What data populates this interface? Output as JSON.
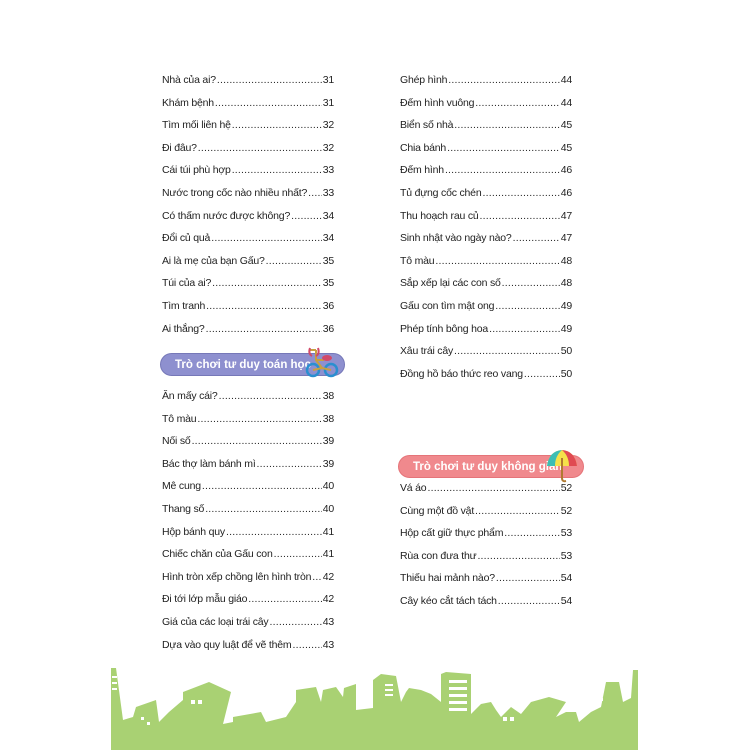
{
  "left_column": {
    "entries_top": [
      {
        "title": "Nhà của ai?",
        "page": "31"
      },
      {
        "title": "Khám bệnh",
        "page": "31"
      },
      {
        "title": "Tìm mối liên hệ",
        "page": "32"
      },
      {
        "title": "Đi đâu?",
        "page": "32"
      },
      {
        "title": "Cái túi phù hợp",
        "page": "33"
      },
      {
        "title": "Nước trong cốc nào nhiều nhất?",
        "page": "33"
      },
      {
        "title": "Có thấm nước được không?",
        "page": "34"
      },
      {
        "title": "Đổi củ quả",
        "page": "34"
      },
      {
        "title": "Ai là mẹ của bạn Gấu?",
        "page": "35"
      },
      {
        "title": "Túi của ai?",
        "page": "35"
      },
      {
        "title": "Tìm tranh",
        "page": "36"
      },
      {
        "title": "Ai thắng?",
        "page": "36"
      }
    ],
    "section": {
      "title": "Trò chơi tư duy toán học",
      "icon": "bicycle-icon",
      "color": "#8e90cf"
    },
    "entries_bottom": [
      {
        "title": "Ăn mấy cái?",
        "page": "38"
      },
      {
        "title": "Tô màu",
        "page": "38"
      },
      {
        "title": "Nối số",
        "page": "39"
      },
      {
        "title": "Bác thợ làm bánh mì",
        "page": "39"
      },
      {
        "title": "Mê cung",
        "page": "40"
      },
      {
        "title": "Thang số",
        "page": "40"
      },
      {
        "title": "Hộp bánh quy",
        "page": "41"
      },
      {
        "title": "Chiếc chăn của Gấu con",
        "page": "41"
      },
      {
        "title": "Hình tròn xếp chồng lên hình tròn",
        "page": "42"
      },
      {
        "title": "Đi tới lớp mẫu giáo",
        "page": "42"
      },
      {
        "title": "Giá của các loại trái cây",
        "page": "43"
      },
      {
        "title": "Dựa vào quy luật để vẽ thêm",
        "page": "43"
      }
    ]
  },
  "right_column": {
    "entries_top": [
      {
        "title": "Ghép hình",
        "page": "44"
      },
      {
        "title": "Đếm hình vuông",
        "page": "44"
      },
      {
        "title": "Biển số nhà",
        "page": "45"
      },
      {
        "title": "Chia bánh",
        "page": "45"
      },
      {
        "title": "Đếm hình",
        "page": "46"
      },
      {
        "title": "Tủ đựng cốc chén",
        "page": "46"
      },
      {
        "title": "Thu hoạch rau củ",
        "page": "47"
      },
      {
        "title": "Sinh nhật vào ngày nào?",
        "page": "47"
      },
      {
        "title": "Tô màu",
        "page": "48"
      },
      {
        "title": "Sắp xếp lại các con số",
        "page": "48"
      },
      {
        "title": "Gấu con tìm mật ong",
        "page": "49"
      },
      {
        "title": "Phép tính bông hoa",
        "page": "49"
      },
      {
        "title": "Xâu trái cây",
        "page": "50"
      },
      {
        "title": "Đồng hồ báo thức reo vang",
        "page": "50"
      }
    ],
    "section": {
      "title": "Trò chơi tư duy không gian",
      "icon": "umbrella-icon",
      "color": "#f0898d"
    },
    "entries_bottom": [
      {
        "title": "Vá áo",
        "page": "52"
      },
      {
        "title": "Cùng một đồ vật",
        "page": "52"
      },
      {
        "title": "Hộp cất giữ thực phẩm",
        "page": "53"
      },
      {
        "title": "Rùa con đưa thư",
        "page": "53"
      },
      {
        "title": "Thiếu hai mảnh nào?",
        "page": "54"
      },
      {
        "title": "Cây kéo cắt tách tách",
        "page": "54"
      }
    ]
  },
  "decoration": {
    "skyline_color": "#a9d173"
  }
}
